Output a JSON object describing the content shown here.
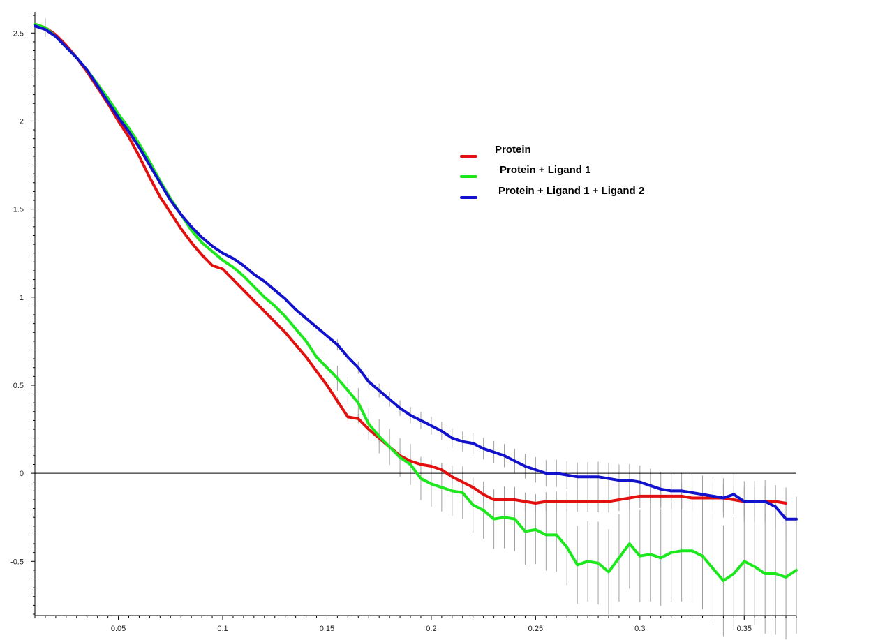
{
  "chart_data": {
    "type": "line",
    "title": "",
    "xlabel": "",
    "ylabel": "",
    "xlim": [
      0.01,
      0.375
    ],
    "ylim": [
      -0.8,
      2.62
    ],
    "grid": false,
    "legend_position": "top-right",
    "x_ticks": [
      0.05,
      0.1,
      0.15,
      0.2,
      0.25,
      0.3,
      0.35
    ],
    "x_tick_labels": [
      "0.05",
      "0.1",
      "0.15",
      "0.2",
      "0.25",
      "0.3",
      "0.35"
    ],
    "y_ticks": [
      2.5,
      2,
      1.5,
      1,
      0.5,
      0,
      -0.5
    ],
    "y_tick_labels": [
      "2.5",
      "2",
      "1.5",
      "1",
      "0.5",
      "0",
      "-0.5"
    ],
    "series": [
      {
        "name": "Protein",
        "color": "#e31010",
        "points": [
          [
            0.01,
            2.55
          ],
          [
            0.015,
            2.53
          ],
          [
            0.02,
            2.49
          ],
          [
            0.025,
            2.43
          ],
          [
            0.03,
            2.36
          ],
          [
            0.035,
            2.28
          ],
          [
            0.04,
            2.19
          ],
          [
            0.045,
            2.1
          ],
          [
            0.05,
            2.0
          ],
          [
            0.055,
            1.91
          ],
          [
            0.06,
            1.8
          ],
          [
            0.065,
            1.68
          ],
          [
            0.07,
            1.57
          ],
          [
            0.075,
            1.48
          ],
          [
            0.08,
            1.39
          ],
          [
            0.085,
            1.31
          ],
          [
            0.09,
            1.24
          ],
          [
            0.095,
            1.18
          ],
          [
            0.1,
            1.16
          ],
          [
            0.105,
            1.1
          ],
          [
            0.11,
            1.04
          ],
          [
            0.115,
            0.98
          ],
          [
            0.12,
            0.92
          ],
          [
            0.125,
            0.86
          ],
          [
            0.13,
            0.8
          ],
          [
            0.135,
            0.73
          ],
          [
            0.14,
            0.66
          ],
          [
            0.145,
            0.58
          ],
          [
            0.15,
            0.5
          ],
          [
            0.155,
            0.41
          ],
          [
            0.16,
            0.32
          ],
          [
            0.165,
            0.31
          ],
          [
            0.17,
            0.25
          ],
          [
            0.175,
            0.2
          ],
          [
            0.18,
            0.15
          ],
          [
            0.185,
            0.1
          ],
          [
            0.19,
            0.07
          ],
          [
            0.195,
            0.05
          ],
          [
            0.2,
            0.04
          ],
          [
            0.205,
            0.02
          ],
          [
            0.21,
            -0.02
          ],
          [
            0.215,
            -0.05
          ],
          [
            0.22,
            -0.08
          ],
          [
            0.225,
            -0.12
          ],
          [
            0.23,
            -0.15
          ],
          [
            0.235,
            -0.15
          ],
          [
            0.24,
            -0.15
          ],
          [
            0.245,
            -0.16
          ],
          [
            0.25,
            -0.17
          ],
          [
            0.255,
            -0.16
          ],
          [
            0.26,
            -0.16
          ],
          [
            0.265,
            -0.16
          ],
          [
            0.27,
            -0.16
          ],
          [
            0.275,
            -0.16
          ],
          [
            0.28,
            -0.16
          ],
          [
            0.285,
            -0.16
          ],
          [
            0.29,
            -0.15
          ],
          [
            0.295,
            -0.14
          ],
          [
            0.3,
            -0.13
          ],
          [
            0.305,
            -0.13
          ],
          [
            0.31,
            -0.13
          ],
          [
            0.315,
            -0.13
          ],
          [
            0.32,
            -0.13
          ],
          [
            0.325,
            -0.14
          ],
          [
            0.33,
            -0.14
          ],
          [
            0.335,
            -0.14
          ],
          [
            0.34,
            -0.14
          ],
          [
            0.345,
            -0.15
          ],
          [
            0.35,
            -0.16
          ],
          [
            0.355,
            -0.16
          ],
          [
            0.36,
            -0.16
          ],
          [
            0.365,
            -0.16
          ],
          [
            0.37,
            -0.17
          ]
        ]
      },
      {
        "name": "Protein + Ligand 1",
        "color": "#1de81d",
        "points": [
          [
            0.01,
            2.55
          ],
          [
            0.015,
            2.53
          ],
          [
            0.02,
            2.48
          ],
          [
            0.025,
            2.42
          ],
          [
            0.03,
            2.36
          ],
          [
            0.035,
            2.29
          ],
          [
            0.04,
            2.21
          ],
          [
            0.045,
            2.13
          ],
          [
            0.05,
            2.04
          ],
          [
            0.055,
            1.96
          ],
          [
            0.06,
            1.87
          ],
          [
            0.065,
            1.77
          ],
          [
            0.07,
            1.66
          ],
          [
            0.075,
            1.56
          ],
          [
            0.08,
            1.47
          ],
          [
            0.085,
            1.38
          ],
          [
            0.09,
            1.31
          ],
          [
            0.095,
            1.26
          ],
          [
            0.1,
            1.21
          ],
          [
            0.105,
            1.17
          ],
          [
            0.11,
            1.12
          ],
          [
            0.115,
            1.06
          ],
          [
            0.12,
            1.0
          ],
          [
            0.125,
            0.95
          ],
          [
            0.13,
            0.89
          ],
          [
            0.135,
            0.82
          ],
          [
            0.14,
            0.75
          ],
          [
            0.145,
            0.66
          ],
          [
            0.15,
            0.6
          ],
          [
            0.155,
            0.54
          ],
          [
            0.16,
            0.47
          ],
          [
            0.165,
            0.4
          ],
          [
            0.17,
            0.28
          ],
          [
            0.175,
            0.21
          ],
          [
            0.18,
            0.15
          ],
          [
            0.185,
            0.09
          ],
          [
            0.19,
            0.05
          ],
          [
            0.195,
            -0.03
          ],
          [
            0.2,
            -0.06
          ],
          [
            0.205,
            -0.08
          ],
          [
            0.21,
            -0.1
          ],
          [
            0.215,
            -0.11
          ],
          [
            0.22,
            -0.18
          ],
          [
            0.225,
            -0.21
          ],
          [
            0.23,
            -0.26
          ],
          [
            0.235,
            -0.25
          ],
          [
            0.24,
            -0.26
          ],
          [
            0.245,
            -0.33
          ],
          [
            0.25,
            -0.32
          ],
          [
            0.255,
            -0.35
          ],
          [
            0.26,
            -0.35
          ],
          [
            0.265,
            -0.42
          ],
          [
            0.27,
            -0.52
          ],
          [
            0.275,
            -0.5
          ],
          [
            0.28,
            -0.51
          ],
          [
            0.285,
            -0.56
          ],
          [
            0.29,
            -0.48
          ],
          [
            0.295,
            -0.4
          ],
          [
            0.3,
            -0.47
          ],
          [
            0.305,
            -0.46
          ],
          [
            0.31,
            -0.48
          ],
          [
            0.315,
            -0.45
          ],
          [
            0.32,
            -0.44
          ],
          [
            0.325,
            -0.44
          ],
          [
            0.33,
            -0.47
          ],
          [
            0.335,
            -0.54
          ],
          [
            0.34,
            -0.61
          ],
          [
            0.345,
            -0.57
          ],
          [
            0.35,
            -0.5
          ],
          [
            0.355,
            -0.53
          ],
          [
            0.36,
            -0.57
          ],
          [
            0.365,
            -0.57
          ],
          [
            0.37,
            -0.59
          ],
          [
            0.375,
            -0.55
          ]
        ]
      },
      {
        "name": "Protein + Ligand 1 + Ligand 2",
        "color": "#1212cc",
        "points": [
          [
            0.01,
            2.54
          ],
          [
            0.015,
            2.52
          ],
          [
            0.02,
            2.48
          ],
          [
            0.025,
            2.42
          ],
          [
            0.03,
            2.36
          ],
          [
            0.035,
            2.29
          ],
          [
            0.04,
            2.2
          ],
          [
            0.045,
            2.11
          ],
          [
            0.05,
            2.02
          ],
          [
            0.055,
            1.94
          ],
          [
            0.06,
            1.85
          ],
          [
            0.065,
            1.75
          ],
          [
            0.07,
            1.65
          ],
          [
            0.075,
            1.55
          ],
          [
            0.08,
            1.47
          ],
          [
            0.085,
            1.4
          ],
          [
            0.09,
            1.34
          ],
          [
            0.095,
            1.29
          ],
          [
            0.1,
            1.25
          ],
          [
            0.105,
            1.22
          ],
          [
            0.11,
            1.18
          ],
          [
            0.115,
            1.13
          ],
          [
            0.12,
            1.09
          ],
          [
            0.125,
            1.04
          ],
          [
            0.13,
            0.99
          ],
          [
            0.135,
            0.93
          ],
          [
            0.14,
            0.88
          ],
          [
            0.145,
            0.83
          ],
          [
            0.15,
            0.78
          ],
          [
            0.155,
            0.73
          ],
          [
            0.16,
            0.66
          ],
          [
            0.165,
            0.6
          ],
          [
            0.17,
            0.52
          ],
          [
            0.175,
            0.47
          ],
          [
            0.18,
            0.42
          ],
          [
            0.185,
            0.37
          ],
          [
            0.19,
            0.33
          ],
          [
            0.195,
            0.3
          ],
          [
            0.2,
            0.27
          ],
          [
            0.205,
            0.24
          ],
          [
            0.21,
            0.2
          ],
          [
            0.215,
            0.18
          ],
          [
            0.22,
            0.17
          ],
          [
            0.225,
            0.14
          ],
          [
            0.23,
            0.12
          ],
          [
            0.235,
            0.1
          ],
          [
            0.24,
            0.07
          ],
          [
            0.245,
            0.04
          ],
          [
            0.25,
            0.02
          ],
          [
            0.255,
            0.0
          ],
          [
            0.26,
            0.0
          ],
          [
            0.265,
            -0.01
          ],
          [
            0.27,
            -0.02
          ],
          [
            0.275,
            -0.02
          ],
          [
            0.28,
            -0.02
          ],
          [
            0.285,
            -0.03
          ],
          [
            0.29,
            -0.04
          ],
          [
            0.295,
            -0.04
          ],
          [
            0.3,
            -0.05
          ],
          [
            0.305,
            -0.07
          ],
          [
            0.31,
            -0.09
          ],
          [
            0.315,
            -0.1
          ],
          [
            0.32,
            -0.1
          ],
          [
            0.325,
            -0.11
          ],
          [
            0.33,
            -0.12
          ],
          [
            0.335,
            -0.13
          ],
          [
            0.34,
            -0.14
          ],
          [
            0.345,
            -0.12
          ],
          [
            0.35,
            -0.16
          ],
          [
            0.355,
            -0.16
          ],
          [
            0.36,
            -0.16
          ],
          [
            0.365,
            -0.19
          ],
          [
            0.37,
            -0.26
          ],
          [
            0.375,
            -0.26
          ]
        ]
      }
    ]
  }
}
